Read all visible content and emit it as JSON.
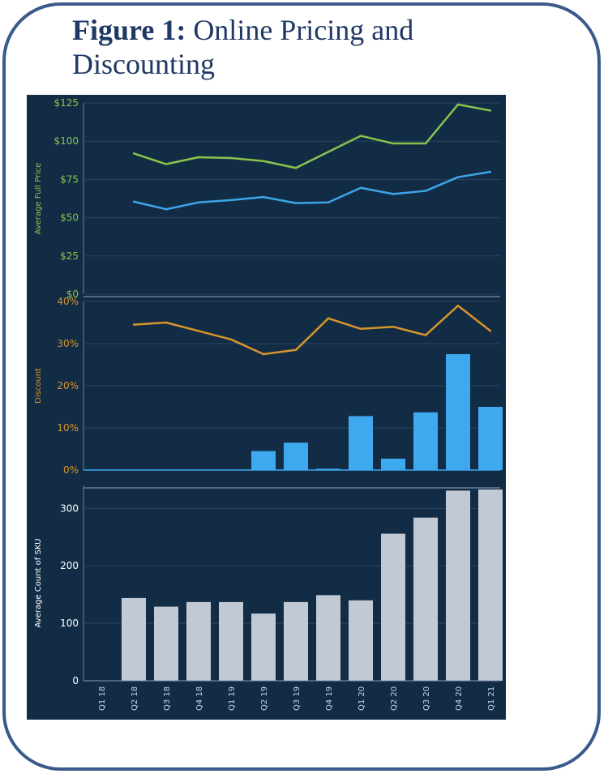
{
  "title": {
    "bold": "Figure 1:",
    "rest": " Online Pricing and",
    "line2": "Discounting"
  },
  "colors": {
    "panel_bg": "#132c46",
    "full_price_line": "#8bc34a",
    "second_price_line": "#3da5e8",
    "discount_line": "#d6962a",
    "discount_bars": "#3fa9f0",
    "sku_bars": "#c1c9d4",
    "green_axis": "#8bc34a",
    "orange_axis": "#d6962a",
    "white_axis": "#ffffff"
  },
  "chart_data": [
    {
      "type": "line",
      "ylabel": "Average Full Price",
      "y_ticks": [
        "$0",
        "$25",
        "$50",
        "$75",
        "$100",
        "$125"
      ],
      "ylim": [
        0,
        125
      ],
      "categories": [
        "Q1 18",
        "Q2 18",
        "Q3 18",
        "Q4 18",
        "Q1 19",
        "Q2 19",
        "Q3 19",
        "Q4 19",
        "Q1 20",
        "Q2 20",
        "Q3 20",
        "Q4 20",
        "Q1 21"
      ],
      "series": [
        {
          "values": [
            null,
            92,
            85,
            89.5,
            89,
            87,
            82.5,
            93,
            103.5,
            98.5,
            98.5,
            124,
            120
          ]
        },
        {
          "values": [
            null,
            60.5,
            55.5,
            60,
            61.5,
            63.5,
            59.5,
            60,
            69.5,
            65.5,
            67.5,
            76.5,
            80
          ]
        }
      ],
      "grid": true
    },
    {
      "type": "bar+line",
      "ylabel": "Discount",
      "y_ticks": [
        "0%",
        "10%",
        "20%",
        "30%",
        "40%"
      ],
      "ylim": [
        0,
        40
      ],
      "categories": [
        "Q1 18",
        "Q2 18",
        "Q3 18",
        "Q4 18",
        "Q1 19",
        "Q2 19",
        "Q3 19",
        "Q4 19",
        "Q1 20",
        "Q2 20",
        "Q3 20",
        "Q4 20",
        "Q1 21"
      ],
      "series": [
        {
          "type": "line",
          "values": [
            null,
            34.5,
            35,
            33,
            31,
            27.5,
            28.5,
            36,
            33.5,
            34,
            32,
            39,
            33
          ]
        },
        {
          "type": "bar",
          "values": [
            0,
            0,
            0,
            0,
            0,
            4.5,
            6.5,
            0.3,
            12.8,
            2.7,
            13.7,
            27.5,
            15
          ]
        }
      ],
      "grid": true
    },
    {
      "type": "bar",
      "ylabel": "Average Count of SKU",
      "y_ticks": [
        "0",
        "100",
        "200",
        "300"
      ],
      "ylim": [
        0,
        340
      ],
      "categories": [
        "Q1 18",
        "Q2 18",
        "Q3 18",
        "Q4 18",
        "Q1 19",
        "Q2 19",
        "Q3 19",
        "Q4 19",
        "Q1 20",
        "Q2 20",
        "Q3 20",
        "Q4 20",
        "Q1 21"
      ],
      "values": [
        0,
        144,
        129,
        137,
        137,
        117,
        137,
        149,
        140,
        256,
        284,
        331,
        333
      ],
      "grid": true
    }
  ]
}
